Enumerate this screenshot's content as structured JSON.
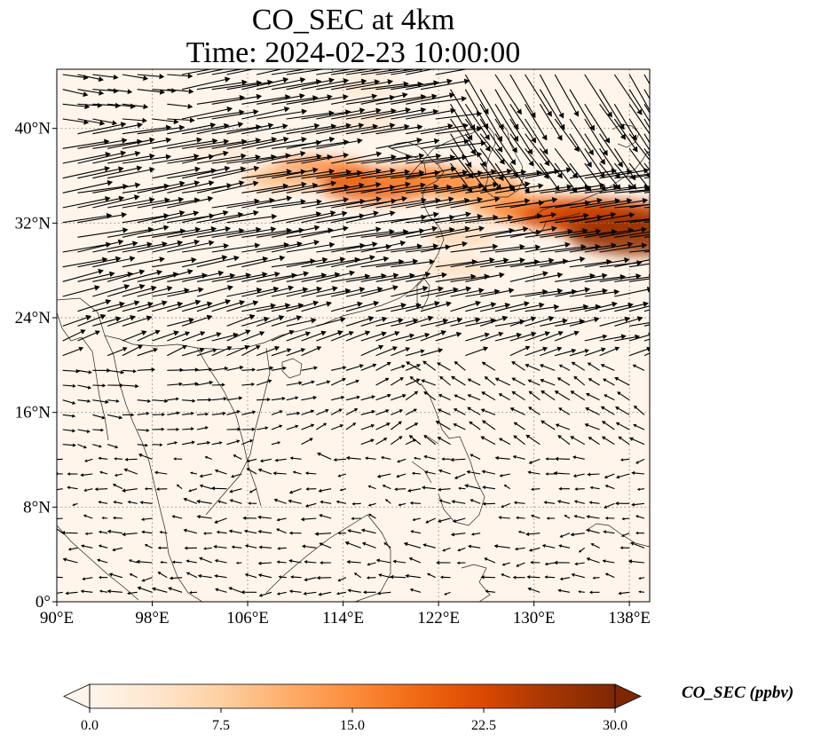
{
  "title": {
    "line1": "CO_SEC at 4km",
    "line2": "Time: 2024-02-23 10:00:00"
  },
  "map": {
    "lon_range": [
      90,
      139.7
    ],
    "lat_range": [
      0,
      45
    ],
    "x_ticks": [
      {
        "lon": 90,
        "label": "90°E"
      },
      {
        "lon": 98,
        "label": "98°E"
      },
      {
        "lon": 106,
        "label": "106°E"
      },
      {
        "lon": 114,
        "label": "114°E"
      },
      {
        "lon": 122,
        "label": "122°E"
      },
      {
        "lon": 130,
        "label": "130°E"
      },
      {
        "lon": 138,
        "label": "138°E"
      }
    ],
    "y_ticks": [
      {
        "lat": 0,
        "label": "0°"
      },
      {
        "lat": 8,
        "label": "8°N"
      },
      {
        "lat": 16,
        "label": "16°N"
      },
      {
        "lat": 24,
        "label": "24°N"
      },
      {
        "lat": 32,
        "label": "32°N"
      },
      {
        "lat": 40,
        "label": "40°N"
      }
    ],
    "gridlines": "dotted",
    "background_color": "#fff5eb",
    "arrow_color": "#000000",
    "coastline_color": "#222222"
  },
  "concentration_field": [
    {
      "lon": 112,
      "lat": 36.3,
      "value": 16
    },
    {
      "lon": 117,
      "lat": 35.2,
      "value": 20
    },
    {
      "lon": 121,
      "lat": 35.6,
      "value": 16
    },
    {
      "lon": 125,
      "lat": 35.0,
      "value": 14
    },
    {
      "lon": 128.5,
      "lat": 33.3,
      "value": 12
    },
    {
      "lon": 131,
      "lat": 33.0,
      "value": 16
    },
    {
      "lon": 134,
      "lat": 32.6,
      "value": 22
    },
    {
      "lon": 137,
      "lat": 32.3,
      "value": 24
    },
    {
      "lon": 139,
      "lat": 31.0,
      "value": 28
    },
    {
      "lon": 109,
      "lat": 35.8,
      "value": 9
    },
    {
      "lon": 124,
      "lat": 30.8,
      "value": 6
    },
    {
      "lon": 123.5,
      "lat": 28.2,
      "value": 5
    },
    {
      "lon": 116,
      "lat": 40.5,
      "value": 4
    },
    {
      "lon": 116,
      "lat": 43.5,
      "value": 4
    },
    {
      "lon": 104,
      "lat": 38.0,
      "value": 3
    }
  ],
  "colorbar": {
    "ticks": [
      "0.0",
      "7.5",
      "15.0",
      "22.5",
      "30.0"
    ],
    "range": [
      0,
      30
    ],
    "extend": "both",
    "colormap": [
      "#fff5eb",
      "#fee6ce",
      "#fdd0a2",
      "#fdae6b",
      "#fd8d3c",
      "#f16913",
      "#d94801",
      "#a63603",
      "#7f2704"
    ],
    "label": "CO_SEC (ppbv)"
  }
}
